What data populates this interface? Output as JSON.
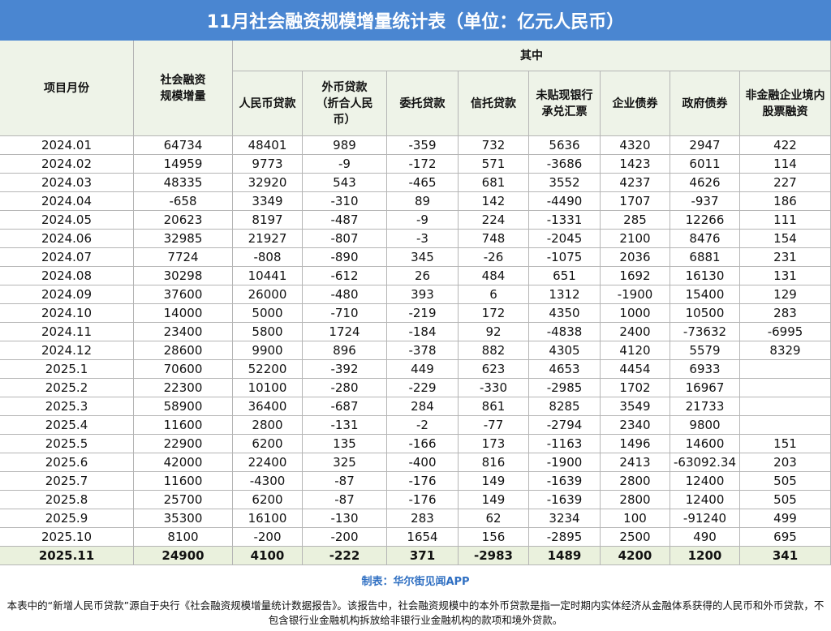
{
  "title": "11月社会融资规模增量统计表（单位：亿元人民币）",
  "table": {
    "group": "其中",
    "columns": [
      "项目月份",
      "社会融资规模增量",
      "人民币贷款",
      "外币贷款（折合人民币）",
      "委托贷款",
      "信托贷款",
      "未贴现银行承兑汇票",
      "企业债券",
      "政府债券",
      "非金融企业境内股票融资"
    ],
    "rows": [
      [
        "2024.01",
        "64734",
        "48401",
        "989",
        "-359",
        "732",
        "5636",
        "4320",
        "2947",
        "422"
      ],
      [
        "2024.02",
        "14959",
        "9773",
        "-9",
        "-172",
        "571",
        "-3686",
        "1423",
        "6011",
        "114"
      ],
      [
        "2024.03",
        "48335",
        "32920",
        "543",
        "-465",
        "681",
        "3552",
        "4237",
        "4626",
        "227"
      ],
      [
        "2024.04",
        "-658",
        "3349",
        "-310",
        "89",
        "142",
        "-4490",
        "1707",
        "-937",
        "186"
      ],
      [
        "2024.05",
        "20623",
        "8197",
        "-487",
        "-9",
        "224",
        "-1331",
        "285",
        "12266",
        "111"
      ],
      [
        "2024.06",
        "32985",
        "21927",
        "-807",
        "-3",
        "748",
        "-2045",
        "2100",
        "8476",
        "154"
      ],
      [
        "2024.07",
        "7724",
        "-808",
        "-890",
        "345",
        "-26",
        "-1075",
        "2036",
        "6881",
        "231"
      ],
      [
        "2024.08",
        "30298",
        "10441",
        "-612",
        "26",
        "484",
        "651",
        "1692",
        "16130",
        "131"
      ],
      [
        "2024.09",
        "37600",
        "26000",
        "-480",
        "393",
        "6",
        "1312",
        "-1900",
        "15400",
        "129"
      ],
      [
        "2024.10",
        "14000",
        "5000",
        "-710",
        "-219",
        "172",
        "4350",
        "1000",
        "10500",
        "283"
      ],
      [
        "2024.11",
        "23400",
        "5800",
        "1724",
        "-184",
        "92",
        "-4838",
        "2400",
        "-73632",
        "-6995"
      ],
      [
        "2024.12",
        "28600",
        "9900",
        "896",
        "-378",
        "882",
        "4305",
        "4120",
        "5579",
        "8329"
      ],
      [
        "2025.1",
        "70600",
        "52200",
        "-392",
        "449",
        "623",
        "4653",
        "4454",
        "6933",
        null
      ],
      [
        "2025.2",
        "22300",
        "10100",
        "-280",
        "-229",
        "-330",
        "-2985",
        "1702",
        "16967",
        null
      ],
      [
        "2025.3",
        "58900",
        "36400",
        "-687",
        "284",
        "861",
        "8285",
        "3549",
        "21733",
        null
      ],
      [
        "2025.4",
        "11600",
        "2800",
        "-131",
        "-2",
        "-77",
        "-2794",
        "2340",
        "9800",
        null
      ],
      [
        "2025.5",
        "22900",
        "6200",
        "135",
        "-166",
        "173",
        "-1163",
        "1496",
        "14600",
        "151"
      ],
      [
        "2025.6",
        "42000",
        "22400",
        "325",
        "-400",
        "816",
        "-1900",
        "2413",
        "-63092.34",
        "203"
      ],
      [
        "2025.7",
        "11600",
        "-4300",
        "-87",
        "-176",
        "149",
        "-1639",
        "2800",
        "12400",
        "505"
      ],
      [
        "2025.8",
        "25700",
        "6200",
        "-87",
        "-176",
        "149",
        "-1639",
        "2800",
        "12400",
        "505"
      ],
      [
        "2025.9",
        "35300",
        "16100",
        "-130",
        "283",
        "62",
        "3234",
        "100",
        "-91240",
        "499"
      ],
      [
        "2025.10",
        "8100",
        "-200",
        "-200",
        "1654",
        "156",
        "-2895",
        "2500",
        "490",
        "695"
      ],
      [
        "2025.11",
        "24900",
        "4100",
        "-222",
        "371",
        "-2983",
        "1489",
        "4200",
        "1200",
        "341"
      ]
    ]
  },
  "credit": "制表：华尔街见闻APP",
  "note": "本表中的“新增人民币贷款”源自于央行《社会融资规模增量统计数据报告》。该报告中，社会融资规模中的本外币贷款是指一定时期内实体经济从金融体系获得的人民币和外币贷款，不包含银行业金融机构拆放给非银行业金融机构的款项和境外贷款。"
}
